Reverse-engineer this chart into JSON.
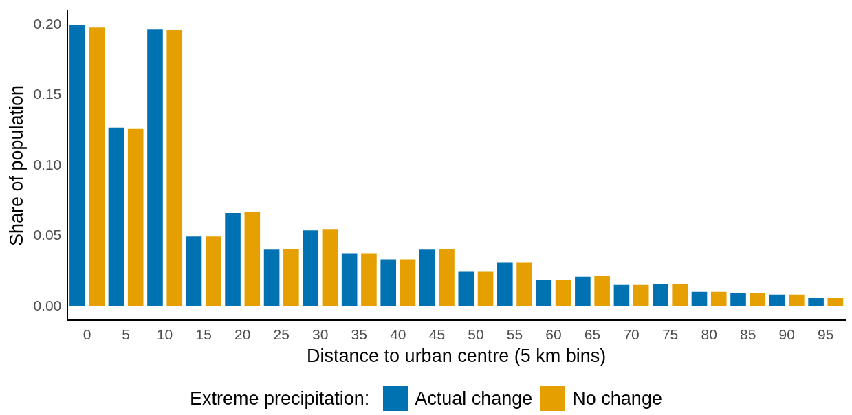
{
  "chart_data": {
    "type": "bar",
    "xlabel": "Distance to urban centre (5 km bins)",
    "ylabel": "Share of population",
    "legend_title": "Extreme precipitation:",
    "legend": "bottom",
    "grid": false,
    "categories": [
      "0",
      "5",
      "10",
      "15",
      "20",
      "25",
      "30",
      "35",
      "40",
      "45",
      "50",
      "55",
      "60",
      "65",
      "70",
      "75",
      "80",
      "85",
      "90",
      "95"
    ],
    "series": [
      {
        "name": "Actual change",
        "color": "#0072b2",
        "values": [
          0.1995,
          0.127,
          0.197,
          0.0496,
          0.0663,
          0.0403,
          0.054,
          0.0378,
          0.0334,
          0.0403,
          0.0246,
          0.031,
          0.019,
          0.0211,
          0.0152,
          0.0157,
          0.0103,
          0.0093,
          0.0084,
          0.0059
        ]
      },
      {
        "name": "No change",
        "color": "#e69f00",
        "values": [
          0.198,
          0.126,
          0.1966,
          0.0496,
          0.0668,
          0.0408,
          0.0545,
          0.0378,
          0.0334,
          0.0408,
          0.0246,
          0.031,
          0.019,
          0.0216,
          0.0152,
          0.0157,
          0.0103,
          0.0093,
          0.0084,
          0.0059
        ]
      }
    ],
    "ylim": [
      -0.01,
      0.21
    ],
    "yticks": [
      {
        "value": 0,
        "label": "0.00"
      },
      {
        "value": 0.05,
        "label": "0.05"
      },
      {
        "value": 0.1,
        "label": "0.10"
      },
      {
        "value": 0.15,
        "label": "0.15"
      },
      {
        "value": 0.2,
        "label": "0.20"
      }
    ]
  }
}
